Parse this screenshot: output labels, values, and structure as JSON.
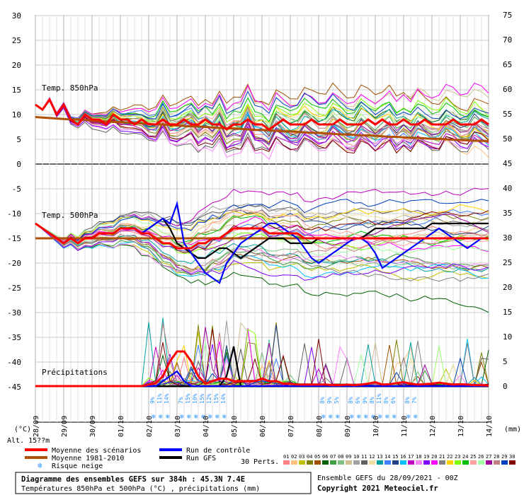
{
  "chart_data": {
    "type": "line",
    "left_axis": {
      "unit": "(°C)",
      "ticks": [
        30,
        25,
        20,
        15,
        10,
        5,
        0,
        -5,
        -10,
        -15,
        -20,
        -25,
        -30,
        -35,
        -40,
        -45
      ]
    },
    "right_axis": {
      "unit": "(mm)",
      "ticks": [
        75,
        70,
        65,
        60,
        55,
        50,
        45,
        40,
        35,
        30,
        25,
        20,
        15,
        10,
        5,
        0
      ]
    },
    "x_ticks": [
      "28/09",
      "29/09",
      "30/09",
      "01/10",
      "02/10",
      "03/10",
      "04/10",
      "05/10",
      "06/10",
      "07/10",
      "08/10",
      "09/10",
      "10/10",
      "11/10",
      "12/10",
      "13/10",
      "14/10"
    ],
    "panel_labels": {
      "t850": "Temp. 850hPa",
      "t500": "Temp. 500hPa",
      "precip": "Précipitations"
    },
    "altitude_label": "Alt. 15??m",
    "series": [
      {
        "name": "Moyenne des scénarios",
        "color": "#ff0000",
        "t850": [
          12,
          11,
          13,
          10,
          12,
          9,
          8,
          10,
          9,
          9,
          8,
          10,
          9,
          9,
          8,
          9,
          8,
          8,
          9,
          8,
          8,
          9,
          8,
          8,
          9,
          8,
          8,
          7,
          8,
          8,
          9,
          8,
          8,
          7,
          8,
          9,
          8,
          8,
          8,
          9,
          8,
          8,
          8,
          9,
          8,
          8,
          8,
          9,
          8,
          9,
          8,
          8,
          9,
          8,
          8,
          9,
          8,
          8,
          8,
          9,
          8,
          8,
          8,
          9,
          8
        ],
        "t500": [
          -12,
          -13,
          -14,
          -15,
          -16,
          -15,
          -16,
          -15,
          -15,
          -14,
          -14,
          -14,
          -13,
          -13,
          -13,
          -14,
          -14,
          -15,
          -16,
          -16,
          -17,
          -17,
          -17,
          -16,
          -16,
          -15,
          -15,
          -14,
          -13,
          -13,
          -13,
          -13,
          -13,
          -14,
          -14,
          -14,
          -14,
          -14,
          -15,
          -15,
          -15,
          -15,
          -15,
          -15,
          -15,
          -15,
          -15,
          -15,
          -15,
          -15,
          -15,
          -15,
          -15,
          -15,
          -15,
          -15,
          -15,
          -15,
          -15,
          -15,
          -15,
          -15,
          -15,
          -15,
          -15
        ],
        "precip": [
          0,
          0,
          0,
          0,
          0,
          0,
          0,
          0,
          0,
          0,
          0,
          0,
          0,
          0,
          0,
          0,
          0.3,
          0.6,
          2,
          5,
          7,
          7,
          5,
          2,
          0.5,
          1,
          1.5,
          1.5,
          1,
          1,
          1,
          1,
          1.5,
          1,
          1,
          0.5,
          0.5,
          0.3,
          0.3,
          0.3,
          0.3,
          0.3,
          0.2,
          0.2,
          0.3,
          0.2,
          0.3,
          0.5,
          0.8,
          0.3,
          0.4,
          0.6,
          0.8,
          0.5,
          0.3,
          0.4,
          0.5,
          0.7,
          0.5,
          0.3,
          0.4,
          0.3,
          0.2,
          0.2,
          0.1
        ]
      },
      {
        "name": "Moyenne 1981-2010",
        "color": "#b05000",
        "t850": [
          9.5,
          9.4,
          9.3,
          9.2,
          9.1,
          9.0,
          9.0,
          8.9,
          8.8,
          8.7,
          8.6,
          8.5,
          8.5,
          8.4,
          8.3,
          8.2,
          8.1,
          8.0,
          8.0,
          7.9,
          7.8,
          7.7,
          7.6,
          7.6,
          7.5,
          7.4,
          7.3,
          7.2,
          7.2,
          7.1,
          7.0,
          6.9,
          6.9,
          6.8,
          6.7,
          6.6,
          6.6,
          6.5,
          6.4,
          6.3,
          6.3,
          6.2,
          6.1,
          6.0,
          6.0,
          5.9,
          5.8,
          5.8,
          5.7,
          5.6,
          5.5,
          5.5,
          5.4,
          5.3,
          5.3,
          5.2,
          5.1,
          5.1,
          5.0,
          4.9,
          4.9,
          4.8,
          4.7,
          4.7,
          4.6
        ],
        "t500": [
          -15,
          -15,
          -15,
          -15,
          -15,
          -15,
          -15,
          -15,
          -15,
          -15,
          -15,
          -15,
          -15,
          -15,
          -15,
          -15,
          -15,
          -15,
          -15,
          -15,
          -15,
          -15,
          -15,
          -15,
          -15,
          -15,
          -15,
          -15,
          -15,
          -15,
          -15,
          -15,
          -15,
          -15,
          -15,
          -15,
          -15,
          -15,
          -15,
          -15,
          -15,
          -15,
          -15,
          -15,
          -15,
          -15,
          -15,
          -15,
          -15,
          -15,
          -15,
          -15,
          -15,
          -15,
          -15,
          -15,
          -15,
          -15,
          -15,
          -15,
          -15,
          -15,
          -15,
          -15,
          -15
        ]
      },
      {
        "name": "Run de contrôle",
        "color": "#0000ff",
        "t850": [
          12,
          11,
          13,
          10,
          12,
          9,
          8,
          10,
          9,
          9,
          8,
          10,
          9,
          9,
          8,
          9,
          8,
          8,
          9,
          8,
          8,
          9,
          8,
          8,
          9,
          8,
          8,
          7,
          8,
          8,
          9,
          8,
          8,
          7,
          8,
          9,
          8,
          8,
          8,
          9,
          8,
          8,
          8,
          9,
          8,
          8,
          8,
          9,
          8,
          9,
          8,
          8,
          9,
          8,
          8,
          9,
          8,
          8,
          8,
          9,
          8,
          8,
          8,
          9,
          8
        ],
        "t500": [
          -12,
          -13,
          -14,
          -15,
          -16,
          -15,
          -16,
          -15,
          -15,
          -14,
          -14,
          -14,
          -13,
          -13,
          -13,
          -14,
          -13,
          -12,
          -11,
          -12,
          -8,
          -16,
          -18,
          -20,
          -22,
          -23,
          -24,
          -20,
          -18,
          -16,
          -15,
          -14,
          -13,
          -12,
          -12,
          -13,
          -14,
          -15,
          -17,
          -19,
          -20,
          -19,
          -18,
          -17,
          -16,
          -15,
          -15,
          -16,
          -18,
          -21,
          -20,
          -19,
          -18,
          -17,
          -16,
          -15,
          -14,
          -13,
          -14,
          -15,
          -16,
          -17,
          -16,
          -15,
          -15
        ],
        "precip": [
          0,
          0,
          0,
          0,
          0,
          0,
          0,
          0,
          0,
          0,
          0,
          0,
          0,
          0,
          0,
          0,
          0,
          0,
          1,
          2,
          3,
          1,
          0,
          0,
          0,
          0,
          0,
          0,
          0,
          0,
          0,
          0,
          0,
          0,
          0,
          0,
          0,
          0,
          0,
          0,
          0,
          0,
          0,
          0,
          0,
          0,
          0,
          0,
          0,
          0,
          0,
          0,
          0,
          0,
          0,
          0,
          0,
          0,
          0,
          0,
          0,
          0,
          0,
          0,
          0
        ]
      },
      {
        "name": "Run GFS",
        "color": "#000000",
        "t850": [
          12,
          11,
          13,
          10,
          12,
          9,
          8,
          10,
          9,
          9,
          8,
          10,
          9,
          9,
          8,
          9,
          8,
          8,
          9,
          8,
          8,
          9,
          8,
          8,
          9,
          8,
          8,
          7,
          8,
          8,
          9,
          8,
          8,
          7,
          8,
          9,
          8,
          8,
          8,
          9,
          8,
          8,
          8,
          9,
          8,
          8,
          8,
          9,
          8,
          9,
          8,
          8,
          9,
          8,
          8,
          9,
          8,
          8,
          8,
          9,
          8,
          8,
          8,
          9,
          8
        ],
        "t500": [
          -12,
          -13,
          -14,
          -15,
          -16,
          -15,
          -16,
          -15,
          -15,
          -14,
          -14,
          -14,
          -13,
          -13,
          -13,
          -14,
          -13,
          -12,
          -11,
          -13,
          -16,
          -17,
          -18,
          -19,
          -19,
          -18,
          -17,
          -17,
          -18,
          -19,
          -18,
          -17,
          -16,
          -15,
          -15,
          -15,
          -16,
          -16,
          -16,
          -16,
          -15,
          -15,
          -15,
          -15,
          -15,
          -15,
          -15,
          -14,
          -13,
          -13,
          -13,
          -13,
          -13,
          -13,
          -13,
          -13,
          -12,
          -12,
          -12,
          -12,
          -12,
          -12,
          -12,
          -12,
          -12
        ],
        "precip": [
          0,
          0,
          0,
          0,
          0,
          0,
          0,
          0,
          0,
          0,
          0,
          0,
          0,
          0,
          0,
          0,
          0,
          0,
          0,
          0,
          0,
          0,
          0,
          0,
          0,
          0,
          0,
          2,
          8,
          0,
          0,
          0,
          0,
          0,
          0,
          0,
          0,
          0,
          0,
          0,
          0,
          0,
          0,
          0,
          0,
          0,
          0,
          0,
          0,
          0,
          0,
          0,
          0,
          0,
          0,
          0,
          0,
          0,
          0,
          0,
          0,
          0,
          0,
          0,
          0
        ]
      }
    ]
  },
  "snow_risk": [
    {
      "day": 4,
      "labels": [
        "9%",
        "11%",
        "14%"
      ]
    },
    {
      "day": 5,
      "labels": [
        "7%",
        "15%",
        "10%",
        "15%",
        "12%",
        "15%",
        "14%"
      ]
    },
    {
      "day": 10,
      "labels": [
        "8%",
        "9%",
        "5%"
      ]
    },
    {
      "day": 11,
      "labels": [
        "8%",
        "6%",
        "9%",
        "8%",
        "11%",
        "8%",
        "6%"
      ]
    },
    {
      "day": 13,
      "labels": [
        "8%",
        "7%"
      ]
    }
  ],
  "legend": {
    "mean": "Moyenne des scénarios",
    "climo": "Moyenne 1981-2010",
    "snow": "Risque neige",
    "control": "Run de contrôle",
    "gfs": "Run GFS",
    "perts": "30 Perts."
  },
  "perturbations": [
    {
      "n": "01",
      "color": "#ff8080"
    },
    {
      "n": "02",
      "color": "#ffc080"
    },
    {
      "n": "03",
      "color": "#c0c000"
    },
    {
      "n": "04",
      "color": "#808000"
    },
    {
      "n": "05",
      "color": "#a05000"
    },
    {
      "n": "06",
      "color": "#006000"
    },
    {
      "n": "07",
      "color": "#40a040"
    },
    {
      "n": "08",
      "color": "#80c080"
    },
    {
      "n": "09",
      "color": "#d0c090"
    },
    {
      "n": "10",
      "color": "#a0a0a0"
    },
    {
      "n": "11",
      "color": "#606060"
    },
    {
      "n": "12",
      "color": "#f0e0a0"
    },
    {
      "n": "13",
      "color": "#00a0a0"
    },
    {
      "n": "14",
      "color": "#4080ff"
    },
    {
      "n": "15",
      "color": "#204080"
    },
    {
      "n": "16",
      "color": "#00c0ff"
    },
    {
      "n": "17",
      "color": "#c000c0"
    },
    {
      "n": "18",
      "color": "#ff80ff"
    },
    {
      "n": "19",
      "color": "#8000ff"
    },
    {
      "n": "20",
      "color": "#ff00ff"
    },
    {
      "n": "21",
      "color": "#808080"
    },
    {
      "n": "22",
      "color": "#ffd000"
    },
    {
      "n": "23",
      "color": "#80ff00"
    },
    {
      "n": "24",
      "color": "#00c000"
    },
    {
      "n": "25",
      "color": "#ffa0a0"
    },
    {
      "n": "26",
      "color": "#a0ffa0"
    },
    {
      "n": "27",
      "color": "#a000a0"
    },
    {
      "n": "28",
      "color": "#c08080"
    },
    {
      "n": "29",
      "color": "#0040c0"
    },
    {
      "n": "30",
      "color": "#800000"
    }
  ],
  "footer": {
    "title": "Diagramme des ensembles GEFS sur 384h : 45.3N 7.4E",
    "subtitle": "Températures 850hPa et 500hPa (°C) , précipitations (mm)",
    "run": "Ensemble GEFS du 28/09/2021 - 00Z",
    "copyright": "Copyright 2021 Meteociel.fr"
  }
}
